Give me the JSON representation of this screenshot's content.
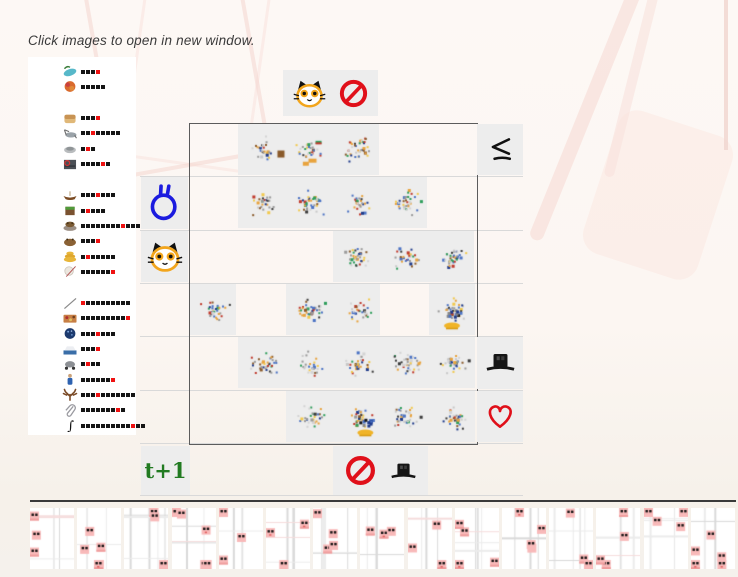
{
  "page": {
    "title_note": "Click images to open in new window.",
    "footer_t_label": "t+1"
  },
  "colors": {
    "accent_red": "#e0101a",
    "balloon_blue": "#1b1bdf",
    "cat_orange": "#f2a51c",
    "t1_green": "#217a21",
    "cell_gray": "#ededed",
    "dot_black": "#151515",
    "dot_red": "#ee1111",
    "ink_black": "#141414"
  },
  "banner": {
    "icons": [
      "cat-face",
      "no-entry"
    ]
  },
  "sidebar": {
    "groups": [
      [
        {
          "icon": "eggplant",
          "dots": 4,
          "red_index": 3
        },
        {
          "icon": "mango",
          "dots": 5,
          "red_index": null
        }
      ],
      [
        {
          "icon": "bread",
          "dots": 4,
          "red_index": 3
        },
        {
          "icon": "crane",
          "dots": 8,
          "red_index": 2
        },
        {
          "icon": "ashtray",
          "dots": 3,
          "red_index": 1
        },
        {
          "icon": "level-crossing",
          "dots": 6,
          "red_index": 4
        }
      ],
      [
        {
          "icon": "gondola",
          "dots": 7,
          "red_index": 3
        },
        {
          "icon": "grass-block",
          "dots": 5,
          "red_index": 1
        },
        {
          "icon": "frog-on-rock",
          "dots": 17,
          "red_index": 8
        },
        {
          "icon": "toad",
          "dots": 4,
          "red_index": 3
        },
        {
          "icon": "beehive",
          "dots": 7,
          "red_index": 1
        },
        {
          "icon": "dandelion",
          "dots": 7,
          "red_index": 6
        }
      ],
      [
        {
          "icon": "needle",
          "dots": 10,
          "red_index": 0
        },
        {
          "icon": "seafood-platter",
          "dots": 10,
          "red_index": 9
        },
        {
          "icon": "disco-ball",
          "dots": 7,
          "red_index": 3
        },
        {
          "icon": "yacht",
          "dots": 4,
          "red_index": 3
        },
        {
          "icon": "scooter",
          "dots": 4,
          "red_index": 1
        },
        {
          "icon": "fisherman",
          "dots": 7,
          "red_index": 6
        },
        {
          "icon": "moose-antlers",
          "dots": 11,
          "red_index": 3
        },
        {
          "icon": "paperclip",
          "dots": 9,
          "red_index": 7
        },
        {
          "icon": "integral-sign",
          "dots": 13,
          "red_index": 10
        }
      ]
    ]
  },
  "grid": {
    "columns": 6,
    "rows": [
      {
        "left_icon": null,
        "right_icon": "leq",
        "scatter": [
          {
            "col_start": 1,
            "col_end": 3,
            "features": [
              "mini-thumbs"
            ]
          }
        ]
      },
      {
        "left_icon": "balloon",
        "right_icon": null,
        "scatter": [
          {
            "col_start": 1,
            "col_end": 4,
            "features": []
          }
        ]
      },
      {
        "left_icon": "cat-face",
        "right_icon": null,
        "scatter": [
          {
            "col_start": 3,
            "col_end": 5,
            "features": []
          }
        ]
      },
      {
        "left_icon": null,
        "right_icon": null,
        "scatter": [
          {
            "col_start": 0,
            "col_end": 0,
            "features": []
          },
          {
            "col_start": 2,
            "col_end": 3,
            "features": []
          },
          {
            "col_start": 5,
            "col_end": 5,
            "features": [
              "yellow-blob",
              "blue-cluster"
            ]
          }
        ]
      },
      {
        "left_icon": null,
        "right_icon": "top-hat",
        "scatter": [
          {
            "col_start": 1,
            "col_end": 5,
            "features": []
          }
        ]
      },
      {
        "left_icon": null,
        "right_icon": "heart",
        "scatter": [
          {
            "col_start": 2,
            "col_end": 5,
            "features": [
              "yellow-blob",
              "blue-cluster"
            ]
          }
        ]
      }
    ],
    "symbols": {
      "leq_glyph": "≤",
      "integral_glyph": "∫"
    }
  },
  "footer": {
    "icons": [
      "no-entry",
      "top-hat"
    ]
  },
  "strip": {
    "tile_count": 15,
    "sprite": "pink-square-two-dots"
  }
}
